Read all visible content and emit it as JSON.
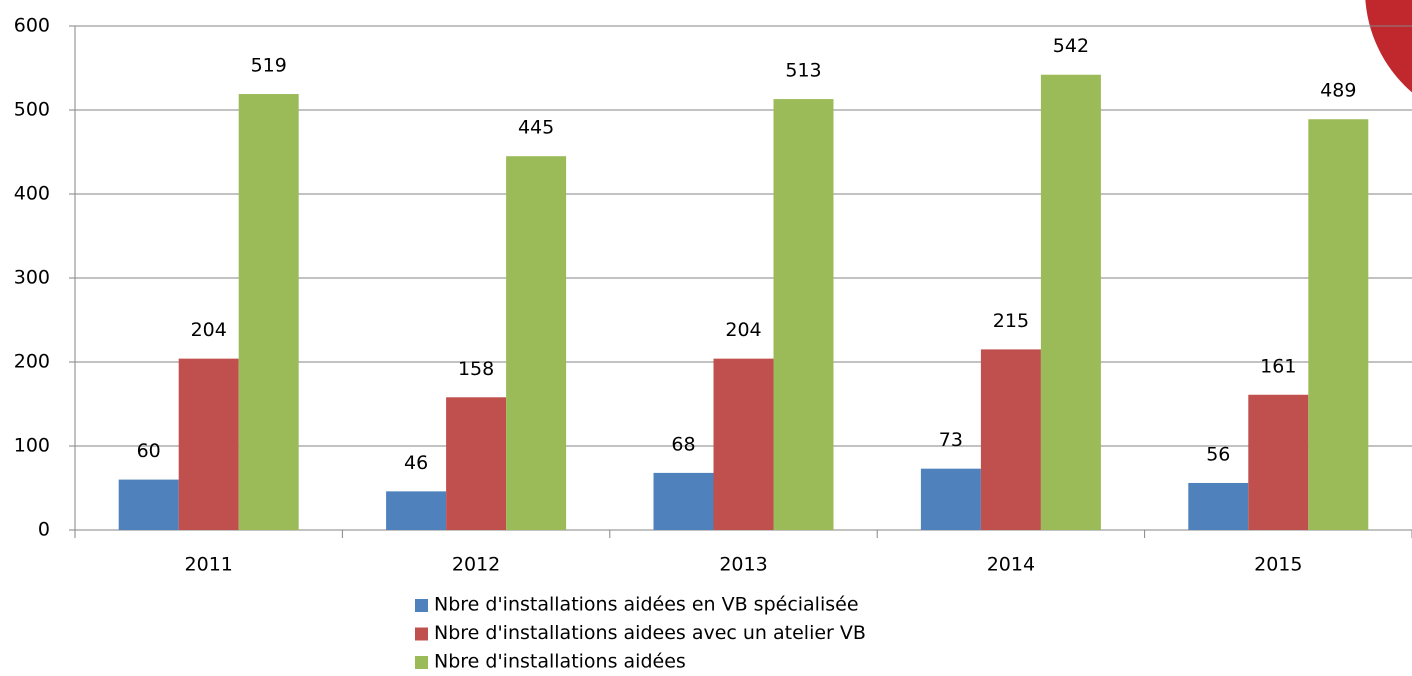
{
  "chart_data": {
    "type": "bar",
    "categories": [
      "2011",
      "2012",
      "2013",
      "2014",
      "2015"
    ],
    "series": [
      {
        "name": "Nbre d'installations aidées en VB spécialisée",
        "color": "#4f81bd",
        "values": [
          60,
          46,
          68,
          73,
          56
        ]
      },
      {
        "name": "Nbre d'installations aidees avec un atelier VB",
        "color": "#c0504d",
        "values": [
          204,
          158,
          204,
          215,
          161
        ]
      },
      {
        "name": "Nbre d'installations aidées",
        "color": "#9bbb59",
        "values": [
          519,
          445,
          513,
          542,
          489
        ]
      }
    ],
    "ylim": [
      0,
      600
    ],
    "yticks": [
      0,
      100,
      200,
      300,
      400,
      500,
      600
    ],
    "grid": true,
    "legend": "bottom"
  }
}
